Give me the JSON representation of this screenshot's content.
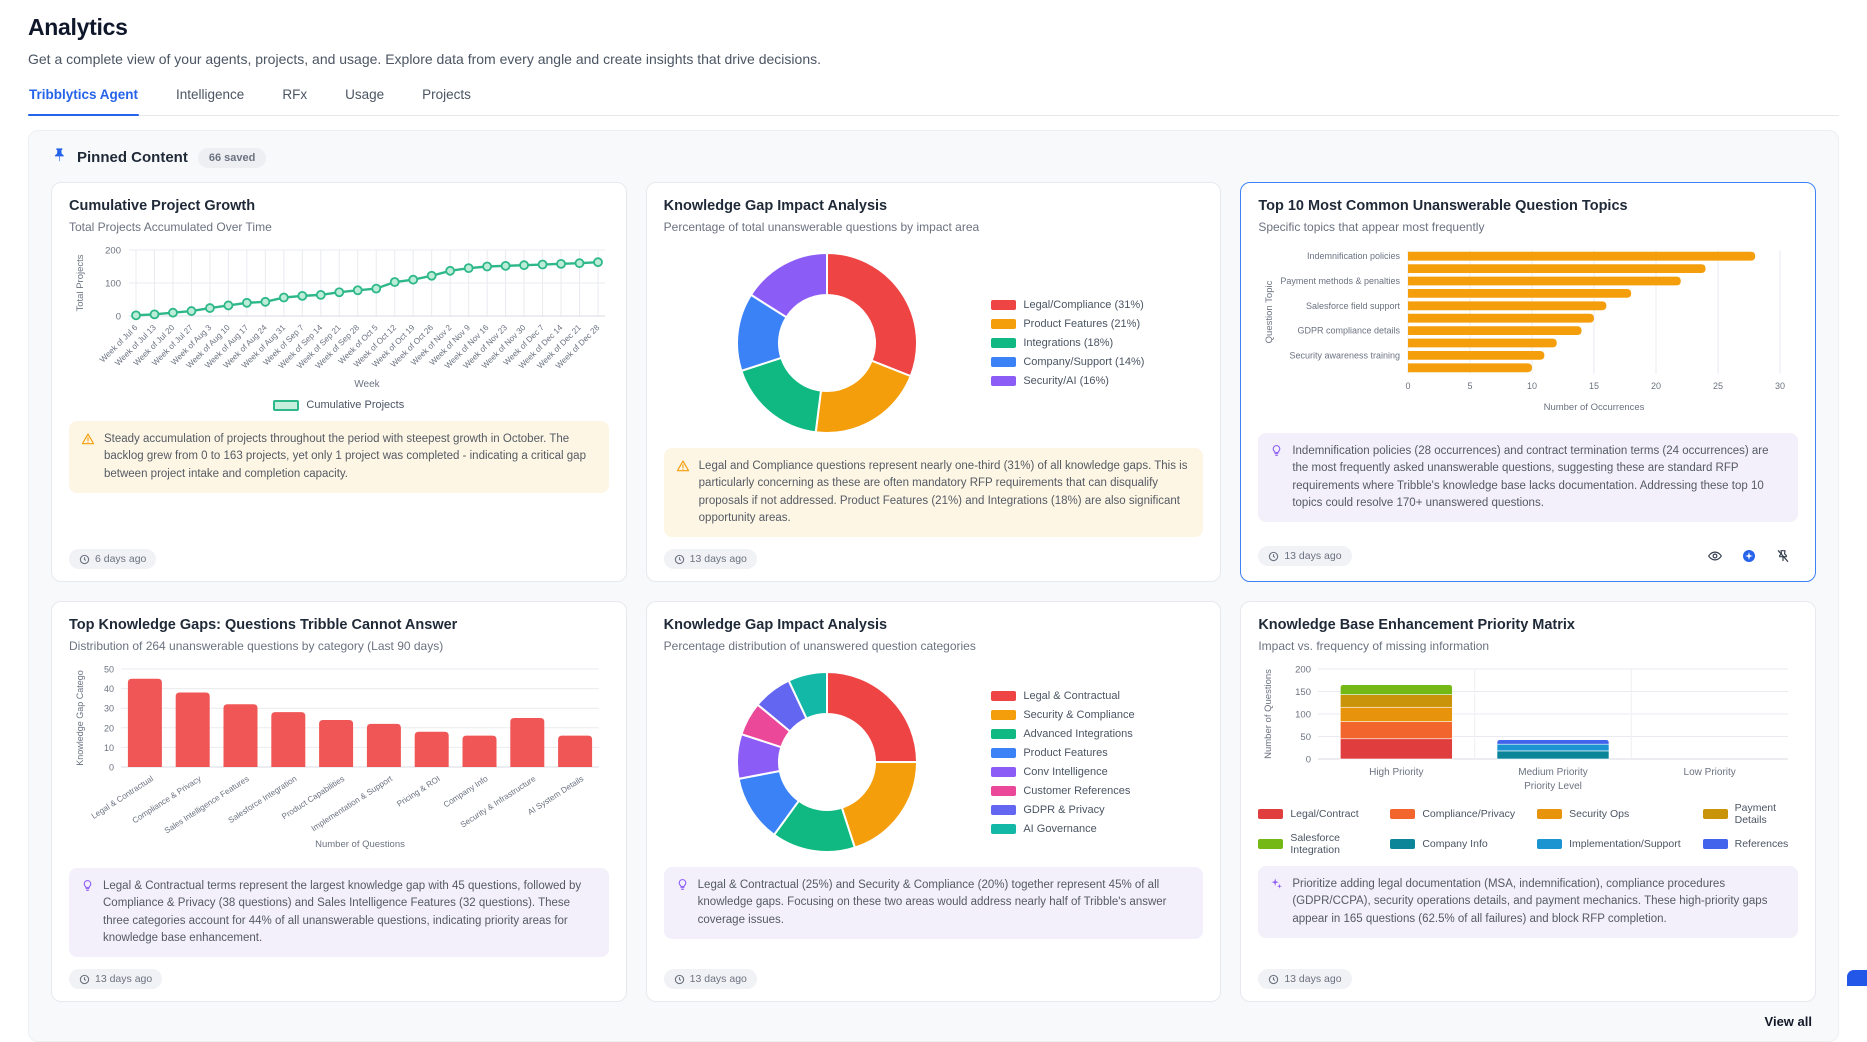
{
  "page": {
    "title": "Analytics",
    "subtitle": "Get a complete view of your agents, projects, and usage. Explore data from every angle and create insights that drive decisions.",
    "tabs": [
      {
        "label": "Tribblytics Agent",
        "active": true
      },
      {
        "label": "Intelligence",
        "active": false
      },
      {
        "label": "RFx",
        "active": false
      },
      {
        "label": "Usage",
        "active": false
      },
      {
        "label": "Projects",
        "active": false
      }
    ]
  },
  "pinned": {
    "title": "Pinned Content",
    "badge": "66 saved",
    "view_all": "View all",
    "pin_icon": "pin-icon"
  },
  "colors": {
    "accent_blue": "#2563eb",
    "selected_card_border": "#3b82f6",
    "line_green": "#2eb88a",
    "bar_orange": "#f59e0b",
    "bar_red": "#ef4444",
    "note_warning_bg": "#fdf6e5",
    "note_purple_bg": "#f3f0fb"
  },
  "cards": [
    {
      "title": "Cumulative Project Growth",
      "subtitle": "Total Projects Accumulated Over Time",
      "chart": 0,
      "selected": false,
      "note": {
        "icon": "warning-triangle-icon",
        "style": "warning",
        "text": "Steady accumulation of projects throughout the period with steepest growth in October. The backlog grew from 0 to 163 projects, yet only 1 project was completed - indicating a critical gap between project intake and completion capacity."
      },
      "timestamp": "6 days ago",
      "actions": []
    },
    {
      "title": "Knowledge Gap Impact Analysis",
      "subtitle": "Percentage of total unanswerable questions by impact area",
      "chart": 1,
      "selected": false,
      "note": {
        "icon": "warning-triangle-icon",
        "style": "warning",
        "text": "Legal and Compliance questions represent nearly one-third (31%) of all knowledge gaps. This is particularly concerning as these are often mandatory RFP requirements that can disqualify proposals if not addressed. Product Features (21%) and Integrations (18%) are also significant opportunity areas."
      },
      "timestamp": "13 days ago",
      "actions": []
    },
    {
      "title": "Top 10 Most Common Unanswerable Question Topics",
      "subtitle": "Specific topics that appear most frequently",
      "chart": 2,
      "selected": true,
      "note": {
        "icon": "lightbulb-icon",
        "style": "purple",
        "text": "Indemnification policies (28 occurrences) and contract termination terms (24 occurrences) are the most frequently asked unanswerable questions, suggesting these are standard RFP requirements where Tribble's knowledge base lacks documentation. Addressing these top 10 topics could resolve 170+ unanswered questions."
      },
      "timestamp": "13 days ago",
      "actions": [
        "eye-icon",
        "ai-sparkle-icon",
        "unpin-icon"
      ]
    },
    {
      "title": "Top Knowledge Gaps: Questions Tribble Cannot Answer",
      "subtitle": "Distribution of 264 unanswerable questions by category (Last 90 days)",
      "chart": 3,
      "selected": false,
      "note": {
        "icon": "lightbulb-icon",
        "style": "purple",
        "text": "Legal & Contractual terms represent the largest knowledge gap with 45 questions, followed by Compliance & Privacy (38 questions) and Sales Intelligence Features (32 questions). These three categories account for 44% of all unanswerable questions, indicating priority areas for knowledge base enhancement."
      },
      "timestamp": "13 days ago",
      "actions": []
    },
    {
      "title": "Knowledge Gap Impact Analysis",
      "subtitle": "Percentage distribution of unanswered question categories",
      "chart": 4,
      "selected": false,
      "note": {
        "icon": "lightbulb-icon",
        "style": "purple",
        "text": "Legal & Contractual (25%) and Security & Compliance (20%) together represent 45% of all knowledge gaps. Focusing on these two areas would address nearly half of Tribble's answer coverage issues."
      },
      "timestamp": "13 days ago",
      "actions": []
    },
    {
      "title": "Knowledge Base Enhancement Priority Matrix",
      "subtitle": "Impact vs. frequency of missing information",
      "chart": 5,
      "selected": false,
      "note": {
        "icon": "sparkles-icon",
        "style": "purple",
        "text": "Prioritize adding legal documentation (MSA, indemnification), compliance procedures (GDPR/CCPA), security operations details, and payment mechanics. These high-priority gaps appear in 165 questions (62.5% of all failures) and block RFP completion."
      },
      "timestamp": "13 days ago",
      "actions": []
    }
  ],
  "chart_data": [
    {
      "type": "line",
      "title": "Cumulative Project Growth",
      "x": [
        "Week of Jul 6",
        "Week of Jul 13",
        "Week of Jul 20",
        "Week of Jul 27",
        "Week of Aug 3",
        "Week of Aug 10",
        "Week of Aug 17",
        "Week of Aug 24",
        "Week of Aug 31",
        "Week of Sep 7",
        "Week of Sep 14",
        "Week of Sep 21",
        "Week of Sep 28",
        "Week of Oct 5",
        "Week of Oct 12",
        "Week of Oct 19",
        "Week of Oct 26",
        "Week of Nov 2",
        "Week of Nov 9",
        "Week of Nov 16",
        "Week of Nov 23",
        "Week of Nov 30",
        "Week of Dec 7",
        "Week of Dec 14",
        "Week of Dec 21",
        "Week of Dec 28"
      ],
      "series": [
        {
          "name": "Cumulative Projects",
          "color": "#2eb88a",
          "values": [
            2,
            5,
            10,
            15,
            24,
            32,
            40,
            43,
            56,
            61,
            64,
            72,
            78,
            83,
            103,
            110,
            122,
            137,
            145,
            150,
            152,
            154,
            156,
            158,
            160,
            163
          ]
        }
      ],
      "xlabel": "Week",
      "ylabel": "Total Projects",
      "ylim": [
        0,
        200
      ],
      "yticks": [
        0,
        100,
        200
      ],
      "grid": true,
      "legend_position": "bottom"
    },
    {
      "type": "pie",
      "donut": true,
      "labels": [
        "Legal/Compliance (31%)",
        "Product Features (21%)",
        "Integrations (18%)",
        "Company/Support (14%)",
        "Security/AI (16%)"
      ],
      "values": [
        31,
        21,
        18,
        14,
        16
      ],
      "colors": [
        "#ef4444",
        "#f59e0b",
        "#10b981",
        "#3b82f6",
        "#8b5cf6"
      ],
      "legend_position": "right"
    },
    {
      "type": "bar",
      "orientation": "horizontal",
      "visible_labels": [
        "Indemnification policies",
        "Payment methods & penalties",
        "Salesforce field support",
        "GDPR compliance details",
        "Security awareness training"
      ],
      "label_every": 2,
      "values": [
        28,
        24,
        22,
        18,
        16,
        15,
        14,
        12,
        11,
        10
      ],
      "color": "#f59e0b",
      "xlabel": "Number of Occurrences",
      "ylabel": "Question Topic",
      "xlim": [
        0,
        30
      ],
      "xticks": [
        0,
        5,
        10,
        15,
        20,
        25,
        30
      ],
      "grid": true
    },
    {
      "type": "bar",
      "orientation": "vertical",
      "categories": [
        "Legal & Contractual",
        "Compliance & Privacy",
        "Sales Intelligence Features",
        "Salesforce Integration",
        "Product Capabilities",
        "Implementation & Support",
        "Pricing & ROI",
        "Company Info",
        "Security & Infrastructure",
        "AI System Details"
      ],
      "values": [
        45,
        38,
        32,
        28,
        24,
        22,
        18,
        16,
        25,
        16
      ],
      "color": "#ef4444",
      "xlabel": "Number of Questions",
      "ylabel": "Knowledge Gap Catego",
      "ylim": [
        0,
        50
      ],
      "yticks": [
        0,
        10,
        20,
        30,
        40,
        50
      ],
      "grid": true
    },
    {
      "type": "pie",
      "donut": true,
      "labels": [
        "Legal & Contractual",
        "Security & Compliance",
        "Advanced Integrations",
        "Product Features",
        "Conv Intelligence",
        "Customer References",
        "GDPR & Privacy",
        "AI Governance"
      ],
      "values": [
        25,
        20,
        15,
        12,
        8,
        6,
        7,
        7
      ],
      "colors": [
        "#ef4444",
        "#f59e0b",
        "#10b981",
        "#3b82f6",
        "#8b5cf6",
        "#ec4899",
        "#6366f1",
        "#14b8a6"
      ],
      "legend_position": "right"
    },
    {
      "type": "bar",
      "stacked": true,
      "categories": [
        "High Priority",
        "Medium Priority",
        "Low Priority"
      ],
      "series": [
        {
          "name": "Legal/Contract",
          "color": "#e03e3e",
          "values": [
            45,
            0,
            0
          ]
        },
        {
          "name": "Compliance/Privacy",
          "color": "#f2662d",
          "values": [
            38,
            0,
            0
          ]
        },
        {
          "name": "Security Ops",
          "color": "#e8930c",
          "values": [
            32,
            0,
            0
          ]
        },
        {
          "name": "Payment Details",
          "color": "#c9940a",
          "values": [
            28,
            0,
            0
          ]
        },
        {
          "name": "Salesforce Integration",
          "color": "#74b816",
          "values": [
            22,
            0,
            0
          ]
        },
        {
          "name": "Company Info",
          "color": "#0c8599",
          "values": [
            0,
            18,
            0
          ]
        },
        {
          "name": "Implementation/Support",
          "color": "#1c94d2",
          "values": [
            0,
            15,
            0
          ]
        },
        {
          "name": "References",
          "color": "#4263eb",
          "values": [
            0,
            10,
            0
          ]
        }
      ],
      "xlabel": "Priority Level",
      "ylabel": "Number of Questions",
      "ylim": [
        0,
        200
      ],
      "yticks": [
        0,
        50,
        100,
        150,
        200
      ],
      "grid": true,
      "legend_position": "bottom"
    }
  ]
}
